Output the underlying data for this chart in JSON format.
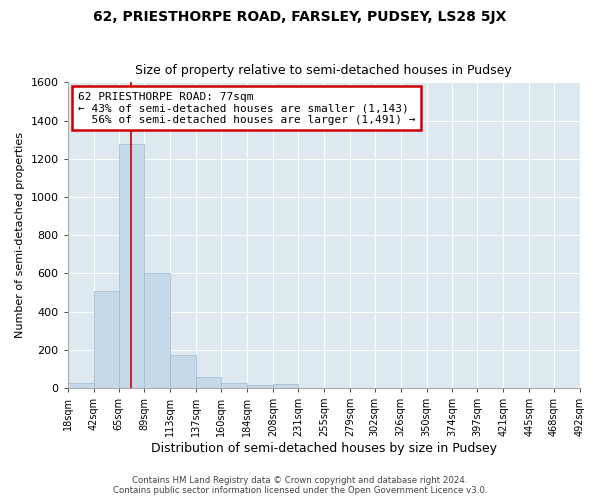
{
  "title": "62, PRIESTHORPE ROAD, FARSLEY, PUDSEY, LS28 5JX",
  "subtitle": "Size of property relative to semi-detached houses in Pudsey",
  "xlabel": "Distribution of semi-detached houses by size in Pudsey",
  "ylabel": "Number of semi-detached properties",
  "bar_color": "#c5d9ea",
  "bar_edge_color": "#9ab8d0",
  "bins": [
    18,
    42,
    65,
    89,
    113,
    137,
    160,
    184,
    208,
    231,
    255,
    279,
    302,
    326,
    350,
    374,
    397,
    421,
    445,
    468,
    492
  ],
  "bin_labels": [
    "18sqm",
    "42sqm",
    "65sqm",
    "89sqm",
    "113sqm",
    "137sqm",
    "160sqm",
    "184sqm",
    "208sqm",
    "231sqm",
    "255sqm",
    "279sqm",
    "302sqm",
    "326sqm",
    "350sqm",
    "374sqm",
    "397sqm",
    "421sqm",
    "445sqm",
    "468sqm",
    "492sqm"
  ],
  "counts": [
    28,
    510,
    1275,
    600,
    170,
    55,
    28,
    15,
    20,
    0,
    0,
    0,
    0,
    0,
    0,
    0,
    0,
    0,
    0,
    0
  ],
  "property_size": 77,
  "property_label": "62 PRIESTHORPE ROAD: 77sqm",
  "pct_smaller": 43,
  "n_smaller": 1143,
  "pct_larger": 56,
  "n_larger": 1491,
  "vline_color": "#cc0000",
  "box_edge_color": "#cc0000",
  "ylim": [
    0,
    1600
  ],
  "yticks": [
    0,
    200,
    400,
    600,
    800,
    1000,
    1200,
    1400,
    1600
  ],
  "background_color": "#dde8f0",
  "grid_color": "#ffffff",
  "fig_bg": "#ffffff",
  "footer1": "Contains HM Land Registry data © Crown copyright and database right 2024.",
  "footer2": "Contains public sector information licensed under the Open Government Licence v3.0."
}
